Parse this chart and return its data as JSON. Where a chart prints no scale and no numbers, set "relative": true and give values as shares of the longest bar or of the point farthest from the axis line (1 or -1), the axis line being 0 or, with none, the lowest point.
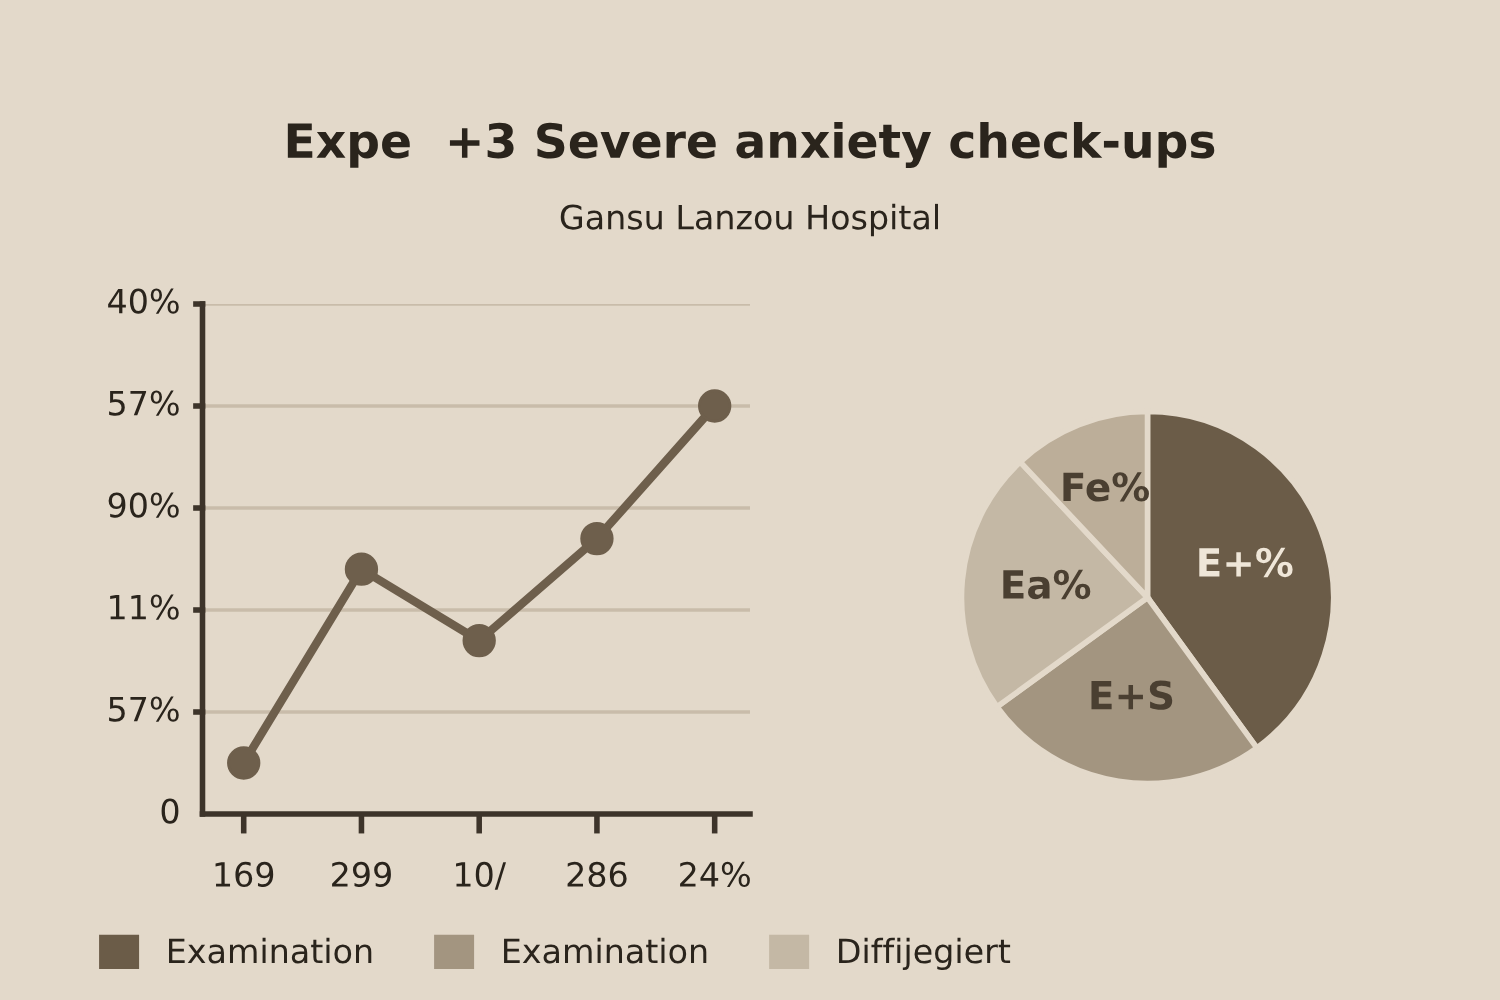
{
  "chart_data": [
    {
      "type": "line",
      "title": "Expe  +3 Severe anxiety check-ups",
      "subtitle": "Gansu Lanzou Hospital",
      "categories": [
        "169",
        "299",
        "10/",
        "286",
        "24%"
      ],
      "values": [
        0.125,
        0.6,
        0.425,
        0.675,
        1.0
      ],
      "color": "#6e5f4c",
      "marker": "circle",
      "relative": true,
      "annotations": [
        "40%",
        "57%",
        "90%",
        "11%",
        "57%",
        "0"
      ],
      "grid": "y"
    },
    {
      "type": "pie",
      "categories": [
        "Examination",
        "Examination",
        "Diffijegiert",
        null
      ],
      "values": [
        40,
        25,
        23,
        12
      ],
      "colors": [
        "#6b5c48",
        "#a39580",
        "#c4b8a5",
        "#bcae99"
      ],
      "value_labels": [
        "E+%",
        "E+S",
        "Ea%",
        "Fe%"
      ],
      "legend": "bottom"
    }
  ]
}
